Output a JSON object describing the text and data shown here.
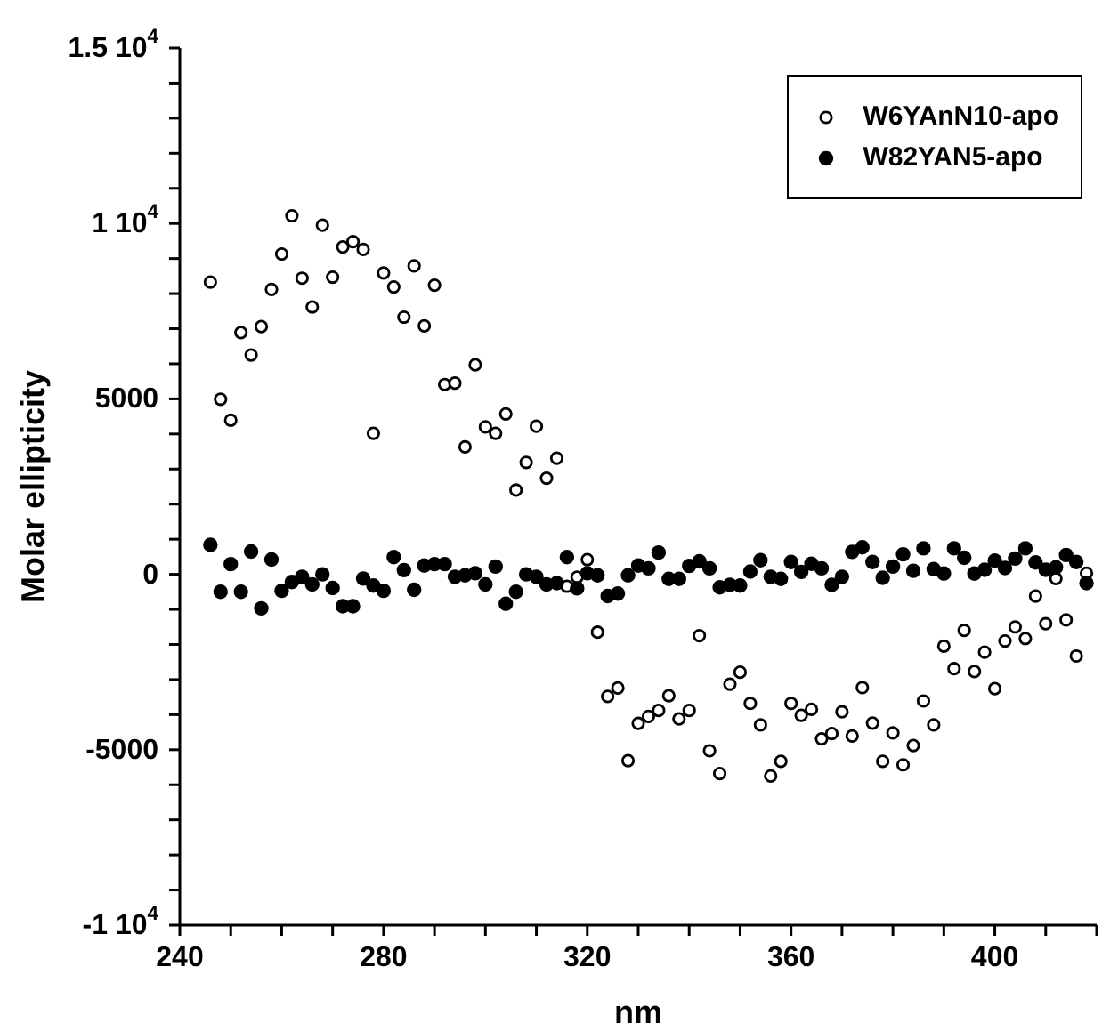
{
  "chart_data": {
    "type": "scatter",
    "xlabel": "nm",
    "ylabel": "Molar ellipticity",
    "x": [
      246,
      248,
      250,
      252,
      254,
      256,
      258,
      260,
      262,
      264,
      266,
      268,
      270,
      272,
      274,
      276,
      278,
      280,
      282,
      284,
      286,
      288,
      290,
      292,
      294,
      296,
      298,
      300,
      302,
      304,
      306,
      308,
      310,
      312,
      314,
      316,
      318,
      320,
      322,
      324,
      326,
      328,
      330,
      332,
      334,
      336,
      338,
      340,
      342,
      344,
      346,
      348,
      350,
      352,
      354,
      356,
      358,
      360,
      362,
      364,
      366,
      368,
      370,
      372,
      374,
      376,
      378,
      380,
      382,
      384,
      386,
      388,
      390,
      392,
      394,
      396,
      398,
      400,
      402,
      404,
      406,
      408,
      410,
      412,
      414,
      416,
      418
    ],
    "series": [
      {
        "name": "W6YAnN10-apo",
        "color": "#000000",
        "marker": "open-circle",
        "values": [
          8330,
          4990,
          4390,
          6890,
          6250,
          7060,
          8120,
          9130,
          10220,
          8440,
          7620,
          9950,
          8470,
          9330,
          9480,
          9260,
          4020,
          8590,
          8190,
          7330,
          8790,
          7080,
          8240,
          5410,
          5450,
          3630,
          5970,
          4200,
          4020,
          4570,
          2400,
          3190,
          4220,
          2740,
          3310,
          -340,
          -80,
          420,
          -1650,
          -3480,
          -3240,
          -5310,
          -4250,
          -4050,
          -3880,
          -3460,
          -4120,
          -3880,
          -1750,
          -5030,
          -5680,
          -3130,
          -2790,
          -3680,
          -4290,
          -5750,
          -5330,
          -3680,
          -4020,
          -3850,
          -4690,
          -4540,
          -3920,
          -4610,
          -3230,
          -4240,
          -5330,
          -4520,
          -5430,
          -4880,
          -3610,
          -4290,
          -2050,
          -2690,
          -1600,
          -2770,
          -2220,
          -3260,
          -1900,
          -1500,
          -1830,
          -620,
          -1410,
          -120,
          -1300,
          -2330,
          30
        ]
      },
      {
        "name": "W82YAN5-apo",
        "color": "#000000",
        "marker": "circle",
        "values": [
          840,
          -500,
          290,
          -500,
          650,
          -970,
          420,
          -470,
          -220,
          -70,
          -290,
          0,
          -390,
          -910,
          -910,
          -120,
          -320,
          -470,
          490,
          120,
          -440,
          250,
          290,
          290,
          -70,
          -30,
          30,
          -290,
          220,
          -840,
          -500,
          0,
          -70,
          -290,
          -250,
          490,
          -400,
          30,
          -30,
          -620,
          -550,
          -30,
          250,
          170,
          620,
          -130,
          -130,
          240,
          370,
          170,
          -370,
          -300,
          -320,
          80,
          400,
          -70,
          -130,
          350,
          70,
          300,
          170,
          -300,
          -70,
          640,
          770,
          350,
          -100,
          220,
          570,
          100,
          740,
          150,
          20,
          740,
          470,
          20,
          130,
          390,
          180,
          450,
          740,
          340,
          130,
          200,
          550,
          350,
          -250
        ]
      }
    ],
    "xlim": [
      240,
      420
    ],
    "xticks": [
      240,
      {
        "value": 250,
        "label": null
      },
      {
        "value": 260,
        "label": null
      },
      {
        "value": 270,
        "label": null
      },
      280,
      {
        "value": 290,
        "label": null
      },
      {
        "value": 300,
        "label": null
      },
      {
        "value": 310,
        "label": null
      },
      320,
      {
        "value": 330,
        "label": null
      },
      {
        "value": 340,
        "label": null
      },
      {
        "value": 350,
        "label": null
      },
      360,
      {
        "value": 370,
        "label": null
      },
      {
        "value": 380,
        "label": null
      },
      {
        "value": 390,
        "label": null
      },
      400,
      {
        "value": 410,
        "label": null
      },
      {
        "value": 420,
        "label": null
      }
    ],
    "ylim": [
      -10000,
      15000
    ],
    "yticks": [
      {
        "value": -10000,
        "label": "-1 10$^{4}$"
      },
      {
        "value": -9000,
        "label": null
      },
      {
        "value": -8000,
        "label": null
      },
      {
        "value": -7000,
        "label": null
      },
      {
        "value": -6000,
        "label": null
      },
      -5000,
      {
        "value": -4000,
        "label": null
      },
      {
        "value": -3000,
        "label": null
      },
      {
        "value": -2000,
        "label": null
      },
      {
        "value": -1000,
        "label": null
      },
      0,
      {
        "value": 1000,
        "label": null
      },
      {
        "value": 2000,
        "label": null
      },
      {
        "value": 3000,
        "label": null
      },
      {
        "value": 4000,
        "label": null
      },
      5000,
      {
        "value": 6000,
        "label": null
      },
      {
        "value": 7000,
        "label": null
      },
      {
        "value": 8000,
        "label": null
      },
      {
        "value": 9000,
        "label": null
      },
      {
        "value": 10000,
        "label": "1 10$^{4}$"
      },
      {
        "value": 11000,
        "label": null
      },
      {
        "value": 12000,
        "label": null
      },
      {
        "value": 13000,
        "label": null
      },
      {
        "value": 14000,
        "label": null
      },
      {
        "value": 15000,
        "label": "1.5 10$^{4}$"
      }
    ],
    "grid": false,
    "legend": "top right"
  }
}
